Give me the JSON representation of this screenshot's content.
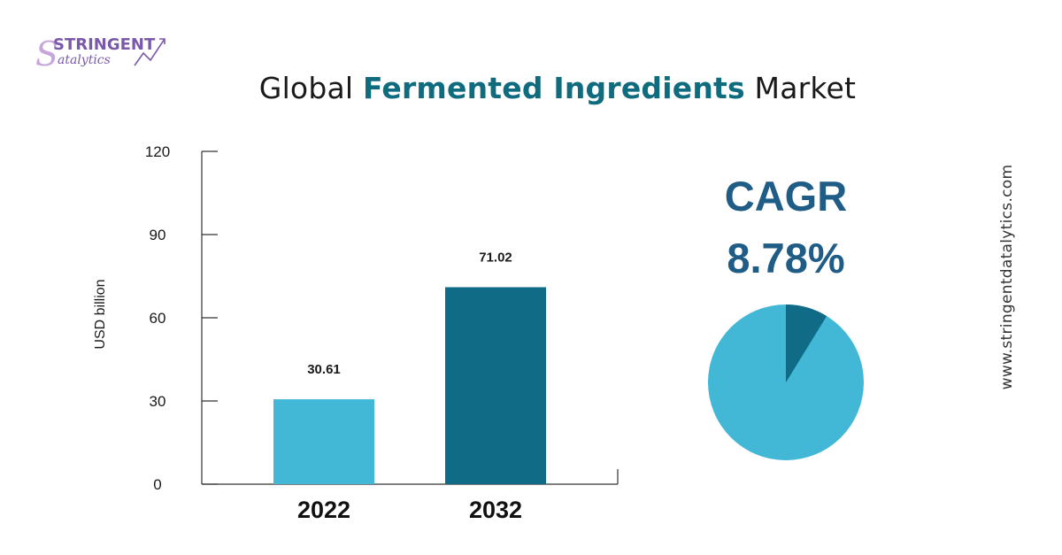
{
  "brand": {
    "name_top": "STRINGENT",
    "name_bottom": "atalytics",
    "initial_S": "S",
    "colors": {
      "primary": "#7a5aa8",
      "secondary": "#c7a6dc"
    }
  },
  "title": {
    "prefix": "Global",
    "highlight": "Fermented Ingredients",
    "suffix": "Market"
  },
  "chart_data": {
    "type": "bar",
    "categories": [
      "2022",
      "2032"
    ],
    "values": [
      30.61,
      71.02
    ],
    "value_labels": [
      "30.61",
      "71.02"
    ],
    "ylabel": "USD billion",
    "xlabel": "",
    "ylim": [
      0,
      120
    ],
    "yticks": [
      0,
      30,
      60,
      90,
      120
    ],
    "colors": [
      "#42b7d6",
      "#0f6b86"
    ],
    "grid": false
  },
  "cagr": {
    "label": "CAGR",
    "value": "8.78%",
    "pie": {
      "share": 0.0878,
      "colors": [
        "#0f6b86",
        "#42b7d6"
      ]
    }
  },
  "watermark": "www.stringentdatalytics.com"
}
